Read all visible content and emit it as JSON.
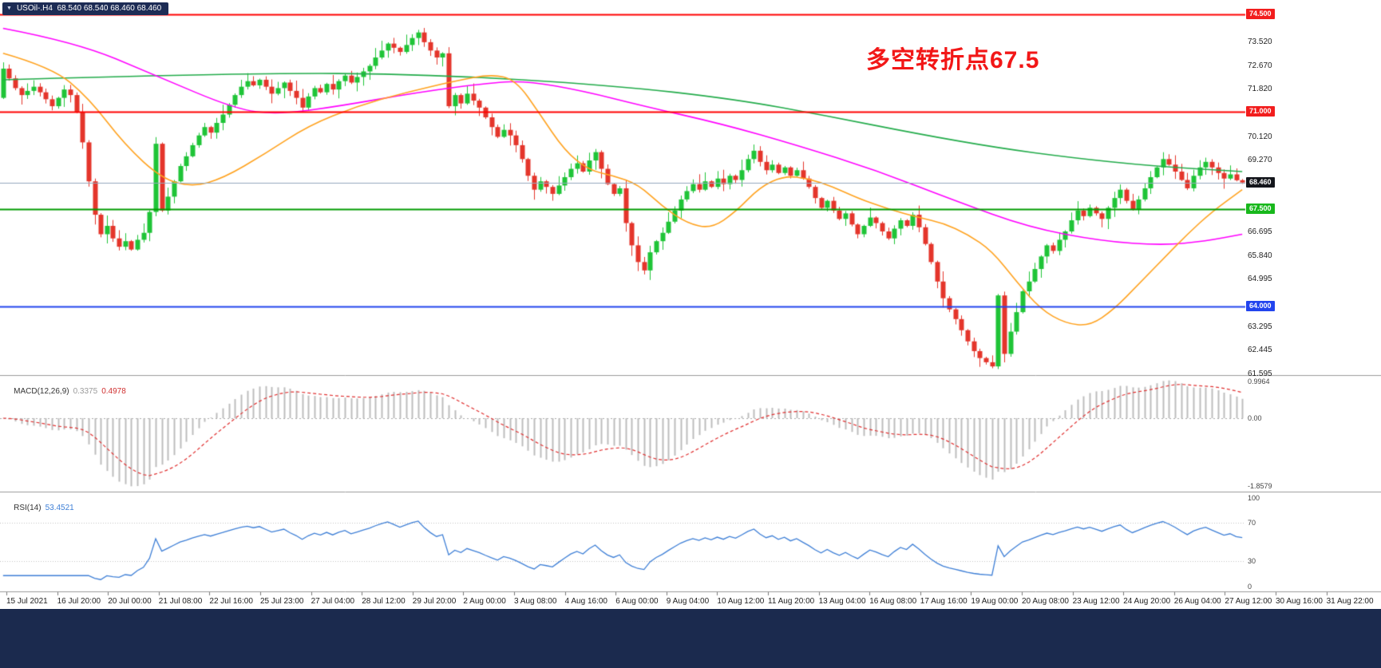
{
  "header": {
    "symbol_chip": "USOil-.H4  68.540 68.540 68.460 68.460"
  },
  "annotation": {
    "text": "多空转折点67.5"
  },
  "colors": {
    "bull": "#1fc437",
    "bear": "#e4352b",
    "ma_green": "#22ab4a",
    "ma_magenta": "#ff00ff",
    "ma_orange": "#ffa21f",
    "level_red": "#ff0000",
    "level_green": "#009b00",
    "level_blue": "#2244ee",
    "price_line": "#94a9bc",
    "macd_hist": "#bdbdbd",
    "macd_signal": "#e03030",
    "rsi_line": "#3e7fd6",
    "panel_border": "#9b9b9b",
    "chip_bg": "#1d2c55",
    "bottom_bar_bg": "#1b2a4e",
    "annotation_red": "#f21717",
    "tag_red_bg": "#f21d1d",
    "tag_green_bg": "#18b81c",
    "tag_blue_bg": "#2244ee",
    "tag_dark_bg": "#14161c"
  },
  "price_axis": {
    "ticks": [
      "73.520",
      "72.670",
      "71.820",
      "70.120",
      "69.270",
      "66.695",
      "65.840",
      "64.995",
      "63.295",
      "62.445",
      "61.595"
    ],
    "tags": [
      {
        "text": "74.500",
        "price": 74.5,
        "bg_key": "tag_red_bg"
      },
      {
        "text": "71.000",
        "price": 71.0,
        "bg_key": "tag_red_bg"
      },
      {
        "text": "68.460",
        "price": 68.46,
        "bg_key": "tag_dark_bg"
      },
      {
        "text": "67.500",
        "price": 67.5,
        "bg_key": "tag_green_bg"
      },
      {
        "text": "64.000",
        "price": 64.0,
        "bg_key": "tag_blue_bg"
      }
    ]
  },
  "macd_panel": {
    "name": "MACD(12,26,9)",
    "value_main": "0.3375",
    "value_signal": "0.4978",
    "scale_max": "0.9964",
    "scale_zero": "0.00",
    "scale_min": "-1.8579"
  },
  "rsi_panel": {
    "name": "RSI(14)",
    "value": "53.4521",
    "scale": [
      "100",
      "70",
      "30",
      "0"
    ],
    "levels": [
      70,
      30
    ]
  },
  "chart_data": {
    "type": "candlestick",
    "symbol": "USOil-",
    "timeframe": "H4",
    "last_ohlc": {
      "open": 68.54,
      "high": 68.54,
      "low": 68.46,
      "close": 68.46
    },
    "ylim": [
      61.5,
      74.6
    ],
    "first_open": 71.5,
    "closes": [
      72.55,
      72.2,
      71.85,
      71.6,
      71.75,
      71.9,
      71.7,
      71.45,
      71.2,
      71.5,
      71.8,
      71.6,
      71.0,
      69.9,
      68.5,
      67.3,
      66.6,
      66.9,
      66.45,
      66.15,
      66.35,
      66.05,
      66.4,
      66.65,
      67.4,
      69.85,
      67.45,
      67.95,
      68.5,
      69.05,
      69.4,
      69.8,
      70.15,
      70.45,
      70.25,
      70.6,
      70.9,
      71.25,
      71.6,
      71.9,
      72.1,
      71.95,
      72.15,
      71.9,
      71.65,
      71.85,
      72.05,
      71.75,
      71.5,
      71.15,
      71.55,
      71.85,
      71.7,
      72.0,
      71.8,
      72.1,
      72.3,
      72.05,
      72.25,
      72.45,
      72.65,
      72.95,
      73.2,
      73.45,
      73.3,
      73.15,
      73.4,
      73.65,
      73.85,
      73.5,
      73.2,
      72.95,
      73.1,
      71.2,
      71.6,
      71.3,
      71.65,
      71.4,
      71.15,
      70.8,
      70.45,
      70.1,
      70.35,
      70.15,
      69.8,
      69.3,
      68.7,
      68.2,
      68.5,
      68.3,
      68.05,
      68.35,
      68.65,
      68.95,
      69.15,
      68.85,
      69.25,
      69.55,
      68.95,
      68.4,
      68.05,
      68.25,
      67.0,
      66.2,
      65.6,
      65.3,
      65.95,
      66.35,
      66.65,
      67.05,
      67.45,
      67.85,
      68.15,
      68.4,
      68.2,
      68.5,
      68.3,
      68.6,
      68.4,
      68.7,
      68.55,
      68.9,
      69.3,
      69.6,
      69.2,
      68.9,
      69.1,
      68.8,
      69.0,
      68.7,
      68.9,
      68.6,
      68.3,
      67.9,
      67.55,
      67.8,
      67.45,
      67.15,
      67.35,
      66.95,
      66.6,
      66.9,
      67.2,
      67.0,
      66.7,
      66.45,
      66.8,
      67.1,
      66.9,
      67.3,
      66.85,
      66.25,
      65.6,
      64.9,
      64.3,
      63.9,
      63.55,
      63.15,
      62.75,
      62.4,
      62.15,
      62.0,
      61.85,
      64.4,
      62.3,
      63.1,
      63.8,
      64.55,
      64.9,
      65.35,
      65.8,
      66.2,
      66.0,
      66.4,
      66.7,
      67.1,
      67.45,
      67.25,
      67.55,
      67.35,
      67.15,
      67.55,
      67.9,
      68.2,
      67.8,
      67.5,
      67.85,
      68.25,
      68.65,
      69.0,
      69.3,
      69.1,
      68.85,
      68.55,
      68.25,
      68.7,
      69.0,
      69.2,
      69.0,
      68.8,
      68.6,
      68.75,
      68.54,
      68.46
    ],
    "horizontal_levels": [
      {
        "price": 74.5,
        "color_key": "level_red",
        "style": "solid"
      },
      {
        "price": 71.0,
        "color_key": "level_red",
        "style": "solid"
      },
      {
        "price": 67.5,
        "color_key": "level_green",
        "style": "solid"
      },
      {
        "price": 64.0,
        "color_key": "level_blue",
        "style": "solid"
      },
      {
        "price": 68.46,
        "color_key": "price_line",
        "style": "current-price"
      }
    ],
    "moving_averages": [
      {
        "name": "ma-slow-green",
        "color_key": "ma_green",
        "anchors": [
          [
            0,
            72.15
          ],
          [
            40,
            72.4
          ],
          [
            70,
            72.35
          ],
          [
            100,
            71.95
          ],
          [
            120,
            71.45
          ],
          [
            135,
            70.85
          ],
          [
            150,
            70.2
          ],
          [
            163,
            69.7
          ],
          [
            175,
            69.35
          ],
          [
            188,
            69.05
          ],
          [
            203,
            68.85
          ]
        ]
      },
      {
        "name": "ma-mid-magenta",
        "color_key": "ma_magenta",
        "anchors": [
          [
            0,
            74.0
          ],
          [
            12,
            73.5
          ],
          [
            25,
            72.3
          ],
          [
            38,
            71.1
          ],
          [
            45,
            70.9
          ],
          [
            55,
            71.2
          ],
          [
            68,
            71.7
          ],
          [
            80,
            72.05
          ],
          [
            86,
            72.1
          ],
          [
            95,
            71.75
          ],
          [
            105,
            71.2
          ],
          [
            118,
            70.55
          ],
          [
            130,
            69.8
          ],
          [
            143,
            68.9
          ],
          [
            156,
            67.8
          ],
          [
            168,
            66.85
          ],
          [
            180,
            66.35
          ],
          [
            190,
            66.2
          ],
          [
            197,
            66.35
          ],
          [
            203,
            66.6
          ]
        ]
      },
      {
        "name": "ma-fast-orange",
        "color_key": "ma_orange",
        "anchors": [
          [
            0,
            73.1
          ],
          [
            8,
            72.6
          ],
          [
            14,
            71.5
          ],
          [
            20,
            69.8
          ],
          [
            26,
            68.6
          ],
          [
            31,
            68.3
          ],
          [
            36,
            68.6
          ],
          [
            43,
            69.5
          ],
          [
            50,
            70.5
          ],
          [
            58,
            71.2
          ],
          [
            66,
            71.7
          ],
          [
            74,
            72.1
          ],
          [
            80,
            72.35
          ],
          [
            84,
            72.15
          ],
          [
            88,
            70.9
          ],
          [
            92,
            69.6
          ],
          [
            96,
            68.9
          ],
          [
            100,
            68.7
          ],
          [
            104,
            68.4
          ],
          [
            108,
            67.6
          ],
          [
            112,
            67.0
          ],
          [
            116,
            66.8
          ],
          [
            120,
            67.4
          ],
          [
            124,
            68.3
          ],
          [
            128,
            68.7
          ],
          [
            132,
            68.6
          ],
          [
            136,
            68.3
          ],
          [
            140,
            67.9
          ],
          [
            145,
            67.5
          ],
          [
            150,
            67.2
          ],
          [
            154,
            67.0
          ],
          [
            158,
            66.6
          ],
          [
            162,
            66.0
          ],
          [
            166,
            64.9
          ],
          [
            170,
            63.9
          ],
          [
            174,
            63.4
          ],
          [
            178,
            63.3
          ],
          [
            182,
            63.9
          ],
          [
            186,
            64.8
          ],
          [
            190,
            65.7
          ],
          [
            194,
            66.6
          ],
          [
            198,
            67.4
          ],
          [
            203,
            68.2
          ]
        ]
      }
    ],
    "indicators": {
      "macd": {
        "fast": 12,
        "slow": 26,
        "signal": 9
      },
      "rsi": {
        "period": 14
      }
    },
    "x_labels": [
      "15 Jul 2021",
      "16 Jul 20:00",
      "20 Jul 00:00",
      "21 Jul 08:00",
      "22 Jul 16:00",
      "25 Jul 23:00",
      "27 Jul 04:00",
      "28 Jul 12:00",
      "29 Jul 20:00",
      "2 Aug 00:00",
      "3 Aug 08:00",
      "4 Aug 16:00",
      "6 Aug 00:00",
      "9 Aug 04:00",
      "10 Aug 12:00",
      "11 Aug 20:00",
      "13 Aug 04:00",
      "16 Aug 08:00",
      "17 Aug 16:00",
      "19 Aug 00:00",
      "20 Aug 08:00",
      "23 Aug 12:00",
      "24 Aug 20:00",
      "26 Aug 04:00",
      "27 Aug 12:00",
      "30 Aug 16:00",
      "31 Aug 22:00"
    ]
  }
}
